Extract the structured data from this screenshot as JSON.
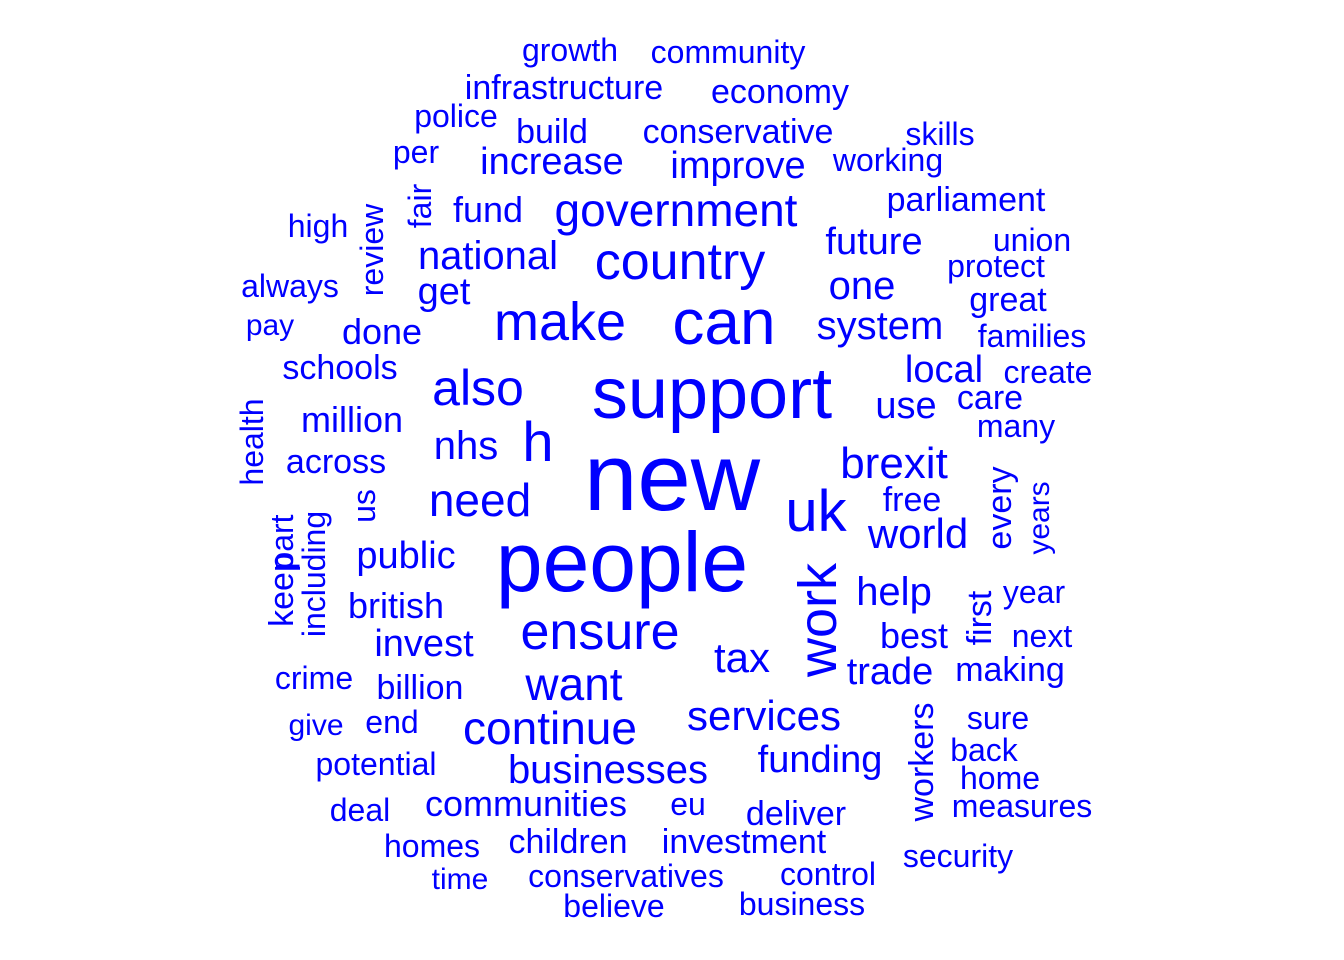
{
  "color": "#0000ff",
  "words": [
    "new",
    "people",
    "support",
    "can",
    "uk",
    "work",
    "h",
    "also",
    "make",
    "country",
    "ensure",
    "government",
    "need",
    "continue",
    "want",
    "brexit",
    "world",
    "nhs",
    "services",
    "tax",
    "system",
    "one",
    "help",
    "future",
    "businesses",
    "funding",
    "national",
    "public",
    "invest",
    "communities",
    "local",
    "improve",
    "increase",
    "trade",
    "best",
    "million",
    "use",
    "conservative",
    "british",
    "across",
    "infrastructure",
    "economy",
    "done",
    "get",
    "every",
    "first",
    "workers",
    "fund",
    "parliament",
    "schools",
    "investment",
    "children",
    "deliver",
    "community",
    "growth",
    "billion",
    "health",
    "keep",
    "part",
    "including",
    "us",
    "review",
    "fair",
    "free",
    "years",
    "making",
    "families",
    "protect",
    "create",
    "conservatives",
    "care",
    "great",
    "build",
    "police",
    "working",
    "skills",
    "union",
    "many",
    "eu",
    "business",
    "control",
    "believe",
    "crime",
    "end",
    "potential",
    "homes",
    "deal",
    "time",
    "measures",
    "security",
    "back",
    "home",
    "sure",
    "year",
    "next",
    "give",
    "always",
    "high",
    "per",
    "pay"
  ]
}
